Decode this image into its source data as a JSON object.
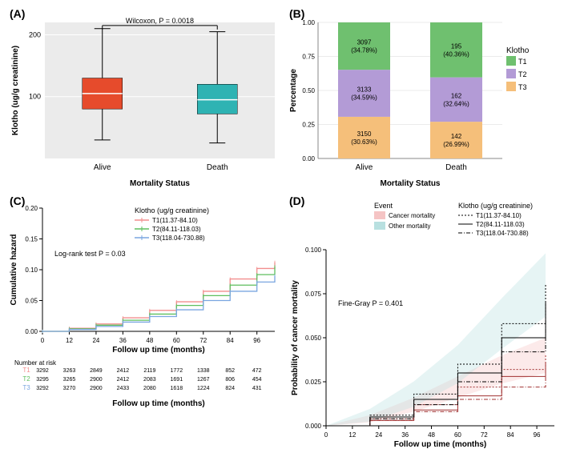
{
  "panelA": {
    "label": "(A)",
    "type": "boxplot",
    "x_title": "Mortality Status",
    "y_title": "Klotho (ug/g creatinine)",
    "annotation": "Wilcoxon, P = 0.0018",
    "categories": [
      "Alive",
      "Death"
    ],
    "boxes": [
      {
        "cat": "Alive",
        "q1": 80,
        "median": 105,
        "q3": 130,
        "whisker_lo": 30,
        "whisker_hi": 210,
        "color": "#e64b2c"
      },
      {
        "cat": "Death",
        "q1": 72,
        "median": 95,
        "q3": 120,
        "whisker_lo": 25,
        "whisker_hi": 205,
        "color": "#2eb3b3"
      }
    ],
    "ylim": [
      0,
      220
    ],
    "yticks": [
      100,
      200
    ],
    "background": "#ebebeb",
    "grid_color": "#ffffff"
  },
  "panelB": {
    "label": "(B)",
    "type": "bar-stacked",
    "x_title": "Mortality Status",
    "y_title": "Percentage",
    "legend_title": "Klotho",
    "categories": [
      "Alive",
      "Death"
    ],
    "tertiles": [
      "T1",
      "T2",
      "T3"
    ],
    "colors": {
      "T1": "#6fc06f",
      "T2": "#b39bd6",
      "T3": "#f5bf7a"
    },
    "stacks": {
      "Alive": [
        {
          "t": "T3",
          "n": "3150",
          "pct": "(30.63%)",
          "frac": 0.3063
        },
        {
          "t": "T2",
          "n": "3133",
          "pct": "(34.59%)",
          "frac": 0.3459
        },
        {
          "t": "T1",
          "n": "3097",
          "pct": "(34.78%)",
          "frac": 0.3478
        }
      ],
      "Death": [
        {
          "t": "T3",
          "n": "142",
          "pct": "(26.99%)",
          "frac": 0.2699
        },
        {
          "t": "T2",
          "n": "162",
          "pct": "(32.64%)",
          "frac": 0.3264
        },
        {
          "t": "T1",
          "n": "195",
          "pct": "(40.36%)",
          "frac": 0.4036
        }
      ]
    },
    "yticks": [
      0.0,
      0.25,
      0.5,
      0.75,
      1.0
    ],
    "background": "#ffffff",
    "grid_color": "#ebebeb"
  },
  "panelC": {
    "label": "(C)",
    "type": "line",
    "x_title": "Follow up time (months)",
    "y_title": "Cumulative hazard",
    "legend_title": "Klotho (ug/g creatinine)",
    "annotation": "Log-rank test P = 0.03",
    "xlim": [
      0,
      104
    ],
    "xticks": [
      0,
      12,
      24,
      36,
      48,
      60,
      72,
      84,
      96
    ],
    "ylim": [
      0,
      0.2
    ],
    "yticks": [
      0.0,
      0.05,
      0.1,
      0.15,
      0.2
    ],
    "series": [
      {
        "name": "T1(11.37-84.10)",
        "color": "#f28e8e",
        "points": [
          [
            0,
            0
          ],
          [
            12,
            0.005
          ],
          [
            24,
            0.012
          ],
          [
            36,
            0.022
          ],
          [
            48,
            0.034
          ],
          [
            60,
            0.048
          ],
          [
            72,
            0.065
          ],
          [
            84,
            0.085
          ],
          [
            96,
            0.102
          ],
          [
            104,
            0.112
          ]
        ]
      },
      {
        "name": "T2(84.11-118.03)",
        "color": "#5fbf5f",
        "points": [
          [
            0,
            0
          ],
          [
            12,
            0.004
          ],
          [
            24,
            0.01
          ],
          [
            36,
            0.018
          ],
          [
            48,
            0.028
          ],
          [
            60,
            0.042
          ],
          [
            72,
            0.058
          ],
          [
            84,
            0.075
          ],
          [
            96,
            0.092
          ],
          [
            104,
            0.105
          ]
        ]
      },
      {
        "name": "T3(118.04-730.88)",
        "color": "#7aa6e0",
        "points": [
          [
            0,
            0
          ],
          [
            12,
            0.003
          ],
          [
            24,
            0.008
          ],
          [
            36,
            0.015
          ],
          [
            48,
            0.024
          ],
          [
            60,
            0.035
          ],
          [
            72,
            0.05
          ],
          [
            84,
            0.065
          ],
          [
            96,
            0.08
          ],
          [
            104,
            0.09
          ]
        ]
      }
    ],
    "risk_table_title": "Number at risk",
    "risk_rows": [
      {
        "label": "T1",
        "color": "#f28e8e",
        "vals": [
          "3292",
          "3263",
          "2849",
          "2412",
          "2119",
          "1772",
          "1338",
          "852",
          "472"
        ]
      },
      {
        "label": "T2",
        "color": "#5fbf5f",
        "vals": [
          "3295",
          "3265",
          "2900",
          "2412",
          "2083",
          "1691",
          "1267",
          "806",
          "454"
        ]
      },
      {
        "label": "T3",
        "color": "#7aa6e0",
        "vals": [
          "3292",
          "3270",
          "2900",
          "2433",
          "2080",
          "1618",
          "1224",
          "824",
          "431"
        ]
      }
    ],
    "risk_x_title": "Follow up time (months)"
  },
  "panelD": {
    "label": "(D)",
    "type": "competing-risk",
    "x_title": "Follow up time (months)",
    "y_title": "Probability of cancer mortality",
    "annotation": "Fine-Gray P = 0.401",
    "xlim": [
      0,
      104
    ],
    "xticks": [
      0,
      12,
      24,
      36,
      48,
      60,
      72,
      84,
      96
    ],
    "ylim": [
      0,
      0.1
    ],
    "yticks": [
      0.0,
      0.025,
      0.05,
      0.075,
      0.1
    ],
    "event_legend_title": "Event",
    "events": [
      {
        "name": "Cancer mortality",
        "color": "#f5c4c4"
      },
      {
        "name": "Other mortality",
        "color": "#b8e0e0"
      }
    ],
    "line_legend_title": "Klotho (ug/g creatinine)",
    "line_series": [
      {
        "name": "T1(11.37-84.10)",
        "dash": "2,2",
        "cancer": [
          [
            0,
            0
          ],
          [
            20,
            0.004
          ],
          [
            40,
            0.012
          ],
          [
            60,
            0.022
          ],
          [
            80,
            0.032
          ],
          [
            100,
            0.04
          ]
        ],
        "other": [
          [
            0,
            0
          ],
          [
            20,
            0.006
          ],
          [
            40,
            0.018
          ],
          [
            60,
            0.035
          ],
          [
            80,
            0.058
          ],
          [
            100,
            0.08
          ]
        ]
      },
      {
        "name": "T2(84.11-118.03)",
        "dash": "",
        "cancer": [
          [
            0,
            0
          ],
          [
            20,
            0.003
          ],
          [
            40,
            0.009
          ],
          [
            60,
            0.017
          ],
          [
            80,
            0.028
          ],
          [
            100,
            0.036
          ]
        ],
        "other": [
          [
            0,
            0
          ],
          [
            20,
            0.005
          ],
          [
            40,
            0.015
          ],
          [
            60,
            0.03
          ],
          [
            80,
            0.05
          ],
          [
            100,
            0.07
          ]
        ]
      },
      {
        "name": "T3(118.04-730.88)",
        "dash": "5,2,1,2",
        "cancer": [
          [
            0,
            0
          ],
          [
            20,
            0.003
          ],
          [
            40,
            0.008
          ],
          [
            60,
            0.015
          ],
          [
            80,
            0.022
          ],
          [
            100,
            0.028
          ]
        ],
        "other": [
          [
            0,
            0
          ],
          [
            20,
            0.004
          ],
          [
            40,
            0.012
          ],
          [
            60,
            0.025
          ],
          [
            80,
            0.042
          ],
          [
            100,
            0.06
          ]
        ]
      }
    ],
    "line_color_cancer": "#a03030",
    "line_color_other": "#000000"
  }
}
